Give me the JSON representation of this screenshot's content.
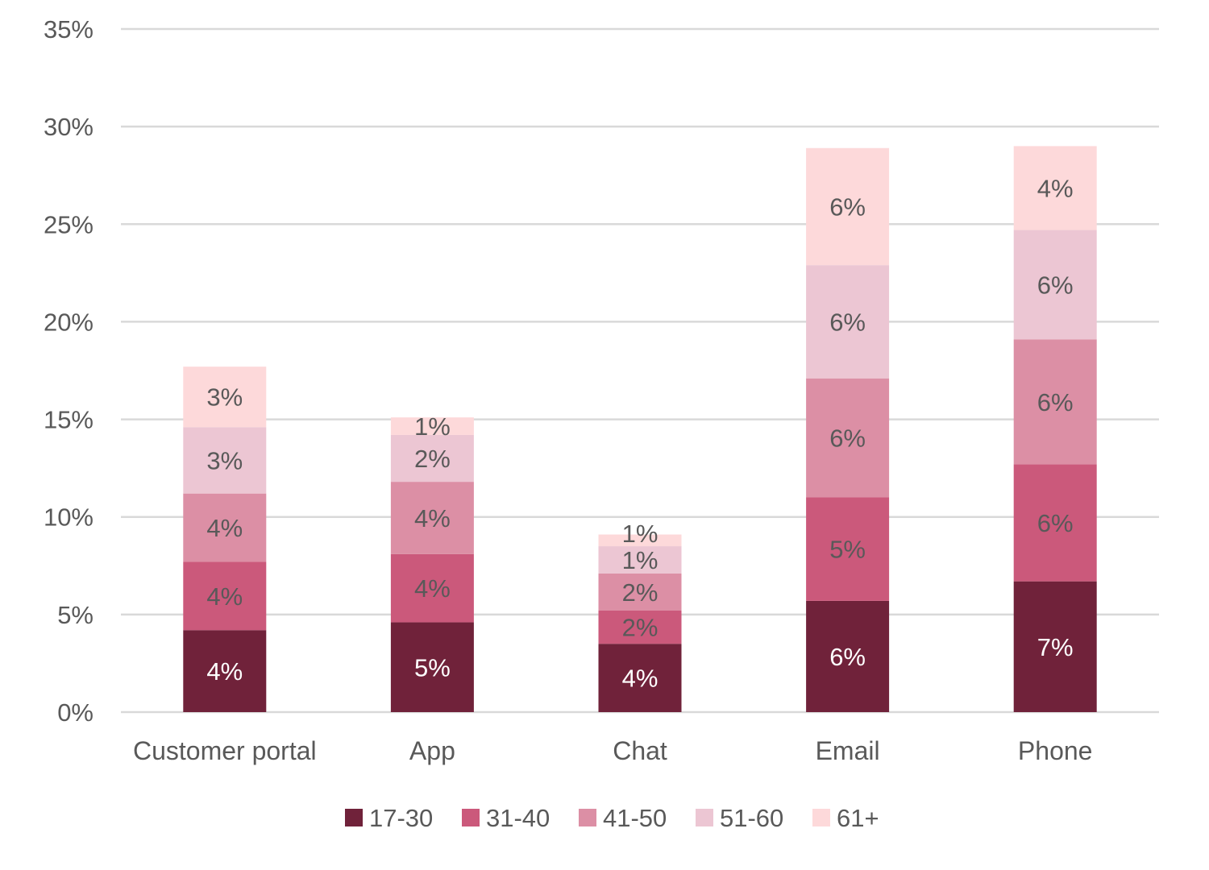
{
  "chart_data": {
    "type": "bar",
    "stacked": true,
    "title": "",
    "xlabel": "",
    "ylabel": "",
    "ylim": [
      0,
      35
    ],
    "y_ticks": [
      "0%",
      "5%",
      "10%",
      "15%",
      "20%",
      "25%",
      "30%",
      "35%"
    ],
    "y_tick_values": [
      0,
      5,
      10,
      15,
      20,
      25,
      30,
      35
    ],
    "grid": true,
    "legend_position": "bottom",
    "categories": [
      "Customer portal",
      "App",
      "Chat",
      "Email",
      "Phone"
    ],
    "series": [
      {
        "name": "17-30",
        "color": "#70223A",
        "label_color": "#ffffff",
        "values": [
          4.2,
          4.6,
          3.5,
          5.7,
          6.7
        ],
        "labels": [
          "4%",
          "5%",
          "4%",
          "6%",
          "7%"
        ]
      },
      {
        "name": "31-40",
        "color": "#CB597B",
        "label_color": "#595959",
        "values": [
          3.5,
          3.5,
          1.7,
          5.3,
          6.0
        ],
        "labels": [
          "4%",
          "4%",
          "2%",
          "5%",
          "6%"
        ]
      },
      {
        "name": "41-50",
        "color": "#DC8FA5",
        "label_color": "#595959",
        "values": [
          3.5,
          3.7,
          1.9,
          6.1,
          6.4
        ],
        "labels": [
          "4%",
          "4%",
          "2%",
          "6%",
          "6%"
        ]
      },
      {
        "name": "51-60",
        "color": "#ECC6D3",
        "label_color": "#595959",
        "values": [
          3.4,
          2.4,
          1.4,
          5.8,
          5.6
        ],
        "labels": [
          "3%",
          "2%",
          "1%",
          "6%",
          "6%"
        ]
      },
      {
        "name": "61+",
        "color": "#FDD9DA",
        "label_color": "#595959",
        "values": [
          3.1,
          0.9,
          0.6,
          6.0,
          4.3
        ],
        "labels": [
          "3%",
          "1%",
          "1%",
          "6%",
          "4%"
        ]
      }
    ]
  }
}
